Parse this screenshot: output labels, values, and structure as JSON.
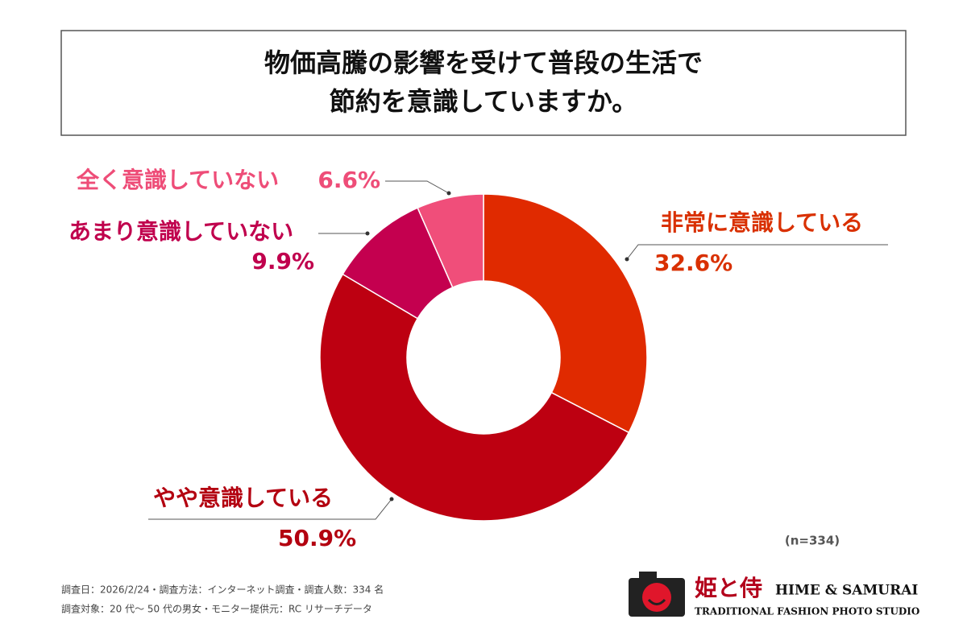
{
  "chart_data": {
    "type": "donut",
    "title_lines": [
      "物価高騰の影響を受けて普段の生活で",
      "節約を意識していますか。"
    ],
    "categories": [
      "非常に意識している",
      "やや意識している",
      "あまり意識していない",
      "全く意識していない"
    ],
    "values": [
      32.6,
      50.9,
      9.9,
      6.6
    ],
    "value_labels": [
      "32.6%",
      "50.9%",
      "9.9%",
      "6.6%"
    ],
    "colors": [
      "#e02a00",
      "#bd0011",
      "#c4004f",
      "#f04e7a"
    ],
    "note": "(n=334)"
  },
  "footer": [
    "調査日：2026/2/24・調査方法：インターネット調査・調査人数：334 名",
    "調査対象：20 代〜 50 代の男女・モニター提供元：RC リサーチデータ"
  ],
  "logo": {
    "name_jp": "姫と侍",
    "name_en": "HIME & SAMURAI",
    "tagline": "TRADITIONAL FASHION PHOTO STUDIO"
  }
}
